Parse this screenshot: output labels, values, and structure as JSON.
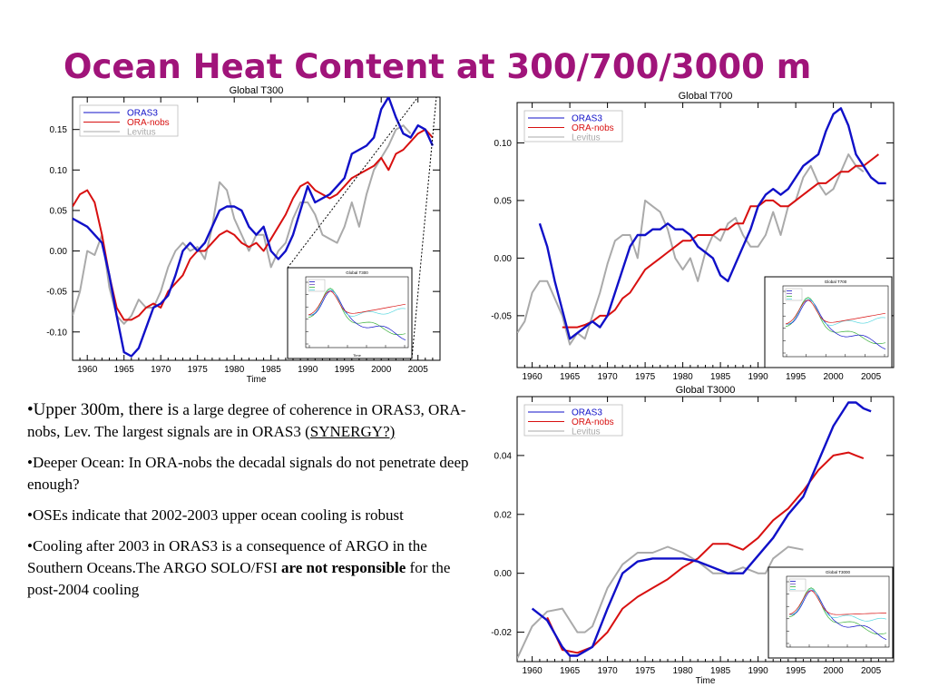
{
  "slide": {
    "title": "Ocean Heat Content at 300/700/3000 m",
    "bullets": {
      "b1": {
        "p1": "•Upper 300m, there is",
        "p2": " a large degree of coherence in ORAS3, ORA-nobs, Lev. The largest signals are in ORAS3 (",
        "link": "SYNERGY?)"
      },
      "b2": "•Deeper Ocean: In ORA-nobs the decadal signals do not penetrate deep enough?",
      "b3": "•OSEs indicate that 2002-2003 upper ocean cooling is robust",
      "b4": {
        "p1": "•Cooling after 2003 in ORAS3 is a consequence of ARGO in the Southern Oceans.The ARGO SOLO/FSI ",
        "bold": "are not responsible",
        "p2": " for the post-2004 cooling"
      }
    }
  },
  "colors": {
    "title": "#a0147a",
    "oras3": "#1010c8",
    "oranobs": "#d81010",
    "levitus": "#aaaaaa",
    "inset_cyan": "#5ad8e0",
    "inset_green": "#3ab03a"
  },
  "chart_data": [
    {
      "type": "line",
      "title": "Global T300",
      "xlabel": "Time",
      "xlim": [
        1958,
        2008
      ],
      "ylim": [
        -0.135,
        0.19
      ],
      "xticks": [
        1960,
        1965,
        1970,
        1975,
        1980,
        1985,
        1990,
        1995,
        2000,
        2005
      ],
      "yticks": [
        -0.1,
        -0.05,
        0.0,
        0.05,
        0.1,
        0.15
      ],
      "ytick_labels": [
        "-0.10",
        "-0.05",
        "0.00",
        "0.05",
        "0.10",
        "0.15"
      ],
      "legend": {
        "position": "top-left",
        "entries": [
          "ORAS3",
          "ORA-nobs",
          "Levitus"
        ]
      },
      "series": [
        {
          "name": "ORAS3",
          "x": [
            1958,
            1959,
            1960,
            1961,
            1962,
            1963,
            1964,
            1965,
            1966,
            1967,
            1968,
            1969,
            1970,
            1971,
            1972,
            1973,
            1974,
            1975,
            1976,
            1977,
            1978,
            1979,
            1980,
            1981,
            1982,
            1983,
            1984,
            1985,
            1986,
            1987,
            1988,
            1989,
            1990,
            1991,
            1992,
            1993,
            1994,
            1995,
            1996,
            1997,
            1998,
            1999,
            2000,
            2001,
            2002,
            2003,
            2004,
            2005,
            2006,
            2007
          ],
          "y": [
            0.04,
            0.035,
            0.03,
            0.02,
            0.01,
            -0.03,
            -0.08,
            -0.125,
            -0.13,
            -0.12,
            -0.095,
            -0.07,
            -0.065,
            -0.055,
            -0.03,
            0.0,
            0.01,
            0.0,
            0.01,
            0.03,
            0.05,
            0.055,
            0.055,
            0.05,
            0.03,
            0.02,
            0.03,
            0.0,
            -0.01,
            0.0,
            0.02,
            0.05,
            0.08,
            0.06,
            0.065,
            0.07,
            0.08,
            0.09,
            0.12,
            0.125,
            0.13,
            0.14,
            0.175,
            0.19,
            0.165,
            0.145,
            0.14,
            0.155,
            0.15,
            0.13
          ]
        },
        {
          "name": "ORA-nobs",
          "x": [
            1958,
            1959,
            1960,
            1961,
            1962,
            1963,
            1964,
            1965,
            1966,
            1967,
            1968,
            1969,
            1970,
            1971,
            1972,
            1973,
            1974,
            1975,
            1976,
            1977,
            1978,
            1979,
            1980,
            1981,
            1982,
            1983,
            1984,
            1985,
            1986,
            1987,
            1988,
            1989,
            1990,
            1991,
            1992,
            1993,
            1994,
            1995,
            1996,
            1997,
            1998,
            1999,
            2000,
            2001,
            2002,
            2003,
            2004,
            2005,
            2006,
            2007
          ],
          "y": [
            0.055,
            0.07,
            0.075,
            0.06,
            0.02,
            -0.03,
            -0.07,
            -0.085,
            -0.085,
            -0.08,
            -0.07,
            -0.065,
            -0.07,
            -0.05,
            -0.04,
            -0.03,
            -0.01,
            0.0,
            0.0,
            0.01,
            0.02,
            0.025,
            0.02,
            0.01,
            0.005,
            0.01,
            0.0,
            0.015,
            0.03,
            0.045,
            0.065,
            0.08,
            0.085,
            0.075,
            0.07,
            0.065,
            0.07,
            0.08,
            0.09,
            0.095,
            0.1,
            0.105,
            0.115,
            0.1,
            0.12,
            0.125,
            0.135,
            0.145,
            0.15,
            0.14
          ]
        },
        {
          "name": "Levitus",
          "x": [
            1958,
            1959,
            1960,
            1961,
            1962,
            1963,
            1964,
            1965,
            1966,
            1967,
            1968,
            1969,
            1970,
            1971,
            1972,
            1973,
            1974,
            1975,
            1976,
            1977,
            1978,
            1979,
            1980,
            1981,
            1982,
            1983,
            1984,
            1985,
            1986,
            1987,
            1988,
            1989,
            1990,
            1991,
            1992,
            1993,
            1994,
            1995,
            1996,
            1997,
            1998,
            1999,
            2000,
            2001,
            2002,
            2003,
            2004
          ],
          "y": [
            -0.08,
            -0.05,
            0.0,
            -0.005,
            0.02,
            -0.045,
            -0.08,
            -0.09,
            -0.08,
            -0.06,
            -0.07,
            -0.07,
            -0.05,
            -0.02,
            0.0,
            0.01,
            0.0,
            0.005,
            -0.01,
            0.03,
            0.085,
            0.075,
            0.04,
            0.02,
            0.0,
            0.02,
            0.02,
            -0.02,
            0.0,
            0.01,
            0.04,
            0.06,
            0.06,
            0.045,
            0.02,
            0.015,
            0.01,
            0.03,
            0.06,
            0.03,
            0.07,
            0.1,
            0.115,
            0.13,
            0.15,
            0.155,
            0.145
          ]
        }
      ]
    },
    {
      "type": "line",
      "title": "Global T700",
      "xlabel": "",
      "xlim": [
        1958,
        2008
      ],
      "ylim": [
        -0.095,
        0.135
      ],
      "xticks": [
        1960,
        1965,
        1970,
        1975,
        1980,
        1985,
        1990,
        1995,
        2000,
        2005
      ],
      "yticks": [
        -0.05,
        0.0,
        0.05,
        0.1
      ],
      "ytick_labels": [
        "-0.05",
        "0.00",
        "0.05",
        "0.10"
      ],
      "legend": {
        "position": "top-left",
        "entries": [
          "ORAS3",
          "ORA-nobs",
          "Levitus"
        ]
      },
      "series": [
        {
          "name": "ORAS3",
          "x": [
            1961,
            1962,
            1963,
            1964,
            1965,
            1966,
            1967,
            1968,
            1969,
            1970,
            1971,
            1972,
            1973,
            1974,
            1975,
            1976,
            1977,
            1978,
            1979,
            1980,
            1981,
            1982,
            1983,
            1984,
            1985,
            1986,
            1987,
            1988,
            1989,
            1990,
            1991,
            1992,
            1993,
            1994,
            1995,
            1996,
            1997,
            1998,
            1999,
            2000,
            2001,
            2002,
            2003,
            2004,
            2005,
            2006,
            2007
          ],
          "y": [
            0.03,
            0.01,
            -0.02,
            -0.045,
            -0.07,
            -0.065,
            -0.06,
            -0.055,
            -0.06,
            -0.05,
            -0.03,
            -0.01,
            0.01,
            0.02,
            0.02,
            0.025,
            0.025,
            0.03,
            0.025,
            0.025,
            0.02,
            0.01,
            0.005,
            0.0,
            -0.015,
            -0.02,
            -0.005,
            0.01,
            0.025,
            0.045,
            0.055,
            0.06,
            0.055,
            0.06,
            0.07,
            0.08,
            0.085,
            0.09,
            0.11,
            0.125,
            0.13,
            0.115,
            0.09,
            0.08,
            0.07,
            0.065,
            0.065
          ]
        },
        {
          "name": "ORA-nobs",
          "x": [
            1964,
            1965,
            1966,
            1967,
            1968,
            1969,
            1970,
            1971,
            1972,
            1973,
            1974,
            1975,
            1976,
            1977,
            1978,
            1979,
            1980,
            1981,
            1982,
            1983,
            1984,
            1985,
            1986,
            1987,
            1988,
            1989,
            1990,
            1991,
            1992,
            1993,
            1994,
            1995,
            1996,
            1997,
            1998,
            1999,
            2000,
            2001,
            2002,
            2003,
            2004,
            2005,
            2006
          ],
          "y": [
            -0.06,
            -0.06,
            -0.06,
            -0.058,
            -0.055,
            -0.05,
            -0.05,
            -0.045,
            -0.035,
            -0.03,
            -0.02,
            -0.01,
            -0.005,
            0.0,
            0.005,
            0.01,
            0.015,
            0.015,
            0.02,
            0.02,
            0.02,
            0.025,
            0.025,
            0.03,
            0.03,
            0.045,
            0.045,
            0.05,
            0.05,
            0.045,
            0.045,
            0.05,
            0.055,
            0.06,
            0.065,
            0.065,
            0.07,
            0.075,
            0.075,
            0.08,
            0.08,
            0.085,
            0.09
          ]
        },
        {
          "name": "Levitus",
          "x": [
            1958,
            1959,
            1960,
            1961,
            1962,
            1963,
            1964,
            1965,
            1966,
            1967,
            1968,
            1969,
            1970,
            1971,
            1972,
            1973,
            1974,
            1975,
            1976,
            1977,
            1978,
            1979,
            1980,
            1981,
            1982,
            1983,
            1984,
            1985,
            1986,
            1987,
            1988,
            1989,
            1990,
            1991,
            1992,
            1993,
            1994,
            1995,
            1996,
            1997,
            1998,
            1999,
            2000,
            2001,
            2002,
            2003,
            2004
          ],
          "y": [
            -0.065,
            -0.055,
            -0.03,
            -0.02,
            -0.02,
            -0.035,
            -0.05,
            -0.075,
            -0.065,
            -0.07,
            -0.05,
            -0.03,
            -0.005,
            0.015,
            0.02,
            0.02,
            0.0,
            0.05,
            0.045,
            0.04,
            0.025,
            0.0,
            -0.01,
            0.0,
            -0.02,
            0.005,
            0.02,
            0.015,
            0.03,
            0.035,
            0.02,
            0.01,
            0.01,
            0.02,
            0.04,
            0.02,
            0.045,
            0.05,
            0.07,
            0.08,
            0.065,
            0.055,
            0.06,
            0.075,
            0.09,
            0.08,
            0.075
          ]
        }
      ]
    },
    {
      "type": "line",
      "title": "Global T3000",
      "xlabel": "Time",
      "xlim": [
        1958,
        2008
      ],
      "ylim": [
        -0.03,
        0.06
      ],
      "xticks": [
        1960,
        1965,
        1970,
        1975,
        1980,
        1985,
        1990,
        1995,
        2000,
        2005
      ],
      "yticks": [
        -0.02,
        0.0,
        0.02,
        0.04
      ],
      "ytick_labels": [
        "-0.02",
        "0.00",
        "0.02",
        "0.04"
      ],
      "legend": {
        "position": "top-left",
        "entries": [
          "ORAS3",
          "ORA-nobs",
          "Levitus"
        ]
      },
      "series": [
        {
          "name": "ORAS3",
          "x": [
            1960,
            1962,
            1964,
            1965,
            1966,
            1968,
            1970,
            1972,
            1974,
            1976,
            1978,
            1980,
            1982,
            1984,
            1986,
            1988,
            1990,
            1992,
            1994,
            1996,
            1998,
            2000,
            2002,
            2003,
            2004,
            2005
          ],
          "y": [
            -0.012,
            -0.016,
            -0.025,
            -0.028,
            -0.028,
            -0.025,
            -0.012,
            0.0,
            0.004,
            0.005,
            0.005,
            0.005,
            0.004,
            0.002,
            0.0,
            0.0,
            0.006,
            0.012,
            0.02,
            0.026,
            0.038,
            0.05,
            0.058,
            0.058,
            0.056,
            0.055
          ]
        },
        {
          "name": "ORA-nobs",
          "x": [
            1962,
            1964,
            1966,
            1968,
            1970,
            1972,
            1974,
            1976,
            1978,
            1980,
            1982,
            1984,
            1986,
            1988,
            1990,
            1992,
            1994,
            1996,
            1998,
            2000,
            2002,
            2003,
            2004
          ],
          "y": [
            -0.015,
            -0.026,
            -0.027,
            -0.025,
            -0.02,
            -0.012,
            -0.008,
            -0.005,
            -0.002,
            0.002,
            0.005,
            0.01,
            0.01,
            0.008,
            0.012,
            0.018,
            0.022,
            0.028,
            0.035,
            0.04,
            0.041,
            0.04,
            0.039
          ]
        },
        {
          "name": "Levitus",
          "x": [
            1958,
            1960,
            1962,
            1964,
            1966,
            1967,
            1968,
            1970,
            1972,
            1974,
            1976,
            1978,
            1980,
            1982,
            1984,
            1986,
            1988,
            1990,
            1991,
            1992,
            1994,
            1996
          ],
          "y": [
            -0.029,
            -0.018,
            -0.013,
            -0.012,
            -0.02,
            -0.02,
            -0.018,
            -0.005,
            0.003,
            0.007,
            0.007,
            0.009,
            0.007,
            0.004,
            0.0,
            0.0,
            0.002,
            0.0,
            0.0,
            0.005,
            0.009,
            0.008
          ]
        }
      ]
    }
  ],
  "insets": [
    {
      "title": "Global T300",
      "xlabel": "Time"
    },
    {
      "title": "Global T700"
    },
    {
      "title": "Global T3000"
    }
  ]
}
